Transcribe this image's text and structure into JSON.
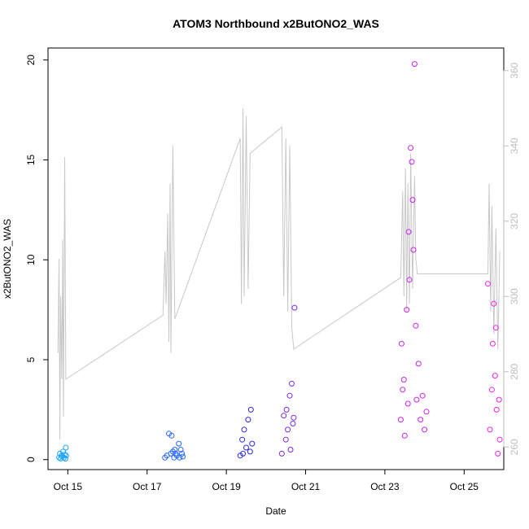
{
  "chart_data": {
    "type": "scatter",
    "title": "ATOM3 Northbound x2ButONO2_WAS",
    "xlabel": "Date",
    "ylabel": "x2ButONO2_WAS",
    "y2label": "",
    "xlim": [
      14.5,
      26.0
    ],
    "ylim": [
      -0.5,
      20.6
    ],
    "y2lim": [
      254,
      366
    ],
    "x_ticks": [
      15,
      17,
      19,
      21,
      23,
      25
    ],
    "x_tick_labels": [
      "Oct 15",
      "Oct 17",
      "Oct 19",
      "Oct 21",
      "Oct 23",
      "Oct 25"
    ],
    "y_ticks": [
      0,
      5,
      10,
      15,
      20
    ],
    "y_tick_labels": [
      "0",
      "5",
      "10",
      "15",
      "20"
    ],
    "y2_ticks": [
      260,
      280,
      300,
      320,
      340,
      360
    ],
    "y2_tick_labels": [
      "260",
      "280",
      "300",
      "320",
      "340",
      "360"
    ],
    "grid": false,
    "colors": {
      "points_by_time": [
        "#1aa3ff",
        "#2666ff",
        "#2a2ae6",
        "#7a2ae6",
        "#cc22ee",
        "#ee22ee"
      ],
      "line": "#c8c8c8"
    },
    "series": [
      {
        "marker": "open-circle",
        "points": [
          [
            14.78,
            0.1
          ],
          [
            14.8,
            0.3
          ],
          [
            14.82,
            0.05
          ],
          [
            14.84,
            0.2
          ],
          [
            14.86,
            0.15
          ],
          [
            14.88,
            0.4
          ],
          [
            14.9,
            0.1
          ],
          [
            14.92,
            0.25
          ],
          [
            14.94,
            0.05
          ],
          [
            14.95,
            0.6
          ],
          [
            14.96,
            0.2
          ],
          [
            17.45,
            0.1
          ],
          [
            17.5,
            0.2
          ],
          [
            17.55,
            1.3
          ],
          [
            17.6,
            0.3
          ],
          [
            17.62,
            1.2
          ],
          [
            17.65,
            0.4
          ],
          [
            17.68,
            0.1
          ],
          [
            17.7,
            0.5
          ],
          [
            17.72,
            0.3
          ],
          [
            17.75,
            0.2
          ],
          [
            17.8,
            0.8
          ],
          [
            17.82,
            0.1
          ],
          [
            17.85,
            0.5
          ],
          [
            17.88,
            0.3
          ],
          [
            17.9,
            0.15
          ],
          [
            19.35,
            0.2
          ],
          [
            19.4,
            1.0
          ],
          [
            19.42,
            0.3
          ],
          [
            19.45,
            1.5
          ],
          [
            19.5,
            0.6
          ],
          [
            19.55,
            2.0
          ],
          [
            19.6,
            0.4
          ],
          [
            19.62,
            2.5
          ],
          [
            19.65,
            0.8
          ],
          [
            20.4,
            0.3
          ],
          [
            20.45,
            2.2
          ],
          [
            20.5,
            1.0
          ],
          [
            20.52,
            2.5
          ],
          [
            20.55,
            1.5
          ],
          [
            20.6,
            3.2
          ],
          [
            20.62,
            0.5
          ],
          [
            20.65,
            3.8
          ],
          [
            20.68,
            1.8
          ],
          [
            20.7,
            2.1
          ],
          [
            20.72,
            7.6
          ],
          [
            23.4,
            2.0
          ],
          [
            23.42,
            5.8
          ],
          [
            23.45,
            3.5
          ],
          [
            23.48,
            4.0
          ],
          [
            23.5,
            1.2
          ],
          [
            23.55,
            7.5
          ],
          [
            23.58,
            2.8
          ],
          [
            23.6,
            11.4
          ],
          [
            23.62,
            9.0
          ],
          [
            23.65,
            15.6
          ],
          [
            23.68,
            14.9
          ],
          [
            23.7,
            13.0
          ],
          [
            23.72,
            10.5
          ],
          [
            23.75,
            19.8
          ],
          [
            23.78,
            6.7
          ],
          [
            23.8,
            3.0
          ],
          [
            23.85,
            4.8
          ],
          [
            23.9,
            2.0
          ],
          [
            23.95,
            3.2
          ],
          [
            24.0,
            1.5
          ],
          [
            24.05,
            2.4
          ],
          [
            25.6,
            8.8
          ],
          [
            25.65,
            1.5
          ],
          [
            25.7,
            3.5
          ],
          [
            25.72,
            5.8
          ],
          [
            25.75,
            7.8
          ],
          [
            25.78,
            4.2
          ],
          [
            25.8,
            6.6
          ],
          [
            25.82,
            2.5
          ],
          [
            25.85,
            0.3
          ],
          [
            25.88,
            3.0
          ],
          [
            25.9,
            1.0
          ]
        ]
      },
      {
        "marker": "line",
        "axis": "right",
        "points": [
          [
            14.75,
            285
          ],
          [
            14.78,
            310
          ],
          [
            14.8,
            262
          ],
          [
            14.82,
            300
          ],
          [
            14.85,
            278
          ],
          [
            14.87,
            315
          ],
          [
            14.89,
            268
          ],
          [
            14.92,
            337
          ],
          [
            14.95,
            278
          ],
          [
            17.4,
            295
          ],
          [
            17.45,
            312
          ],
          [
            17.48,
            298
          ],
          [
            17.52,
            322
          ],
          [
            17.55,
            288
          ],
          [
            17.58,
            330
          ],
          [
            17.6,
            285
          ],
          [
            17.65,
            340
          ],
          [
            17.7,
            294
          ],
          [
            19.35,
            342
          ],
          [
            19.38,
            298
          ],
          [
            19.42,
            350
          ],
          [
            19.45,
            300
          ],
          [
            19.5,
            348
          ],
          [
            19.55,
            302
          ],
          [
            19.6,
            338
          ],
          [
            20.4,
            345
          ],
          [
            20.45,
            300
          ],
          [
            20.5,
            342
          ],
          [
            20.55,
            296
          ],
          [
            20.6,
            340
          ],
          [
            20.65,
            292
          ],
          [
            20.7,
            286
          ],
          [
            23.4,
            305
          ],
          [
            23.45,
            328
          ],
          [
            23.48,
            300
          ],
          [
            23.52,
            334
          ],
          [
            23.55,
            296
          ],
          [
            23.58,
            330
          ],
          [
            23.62,
            298
          ],
          [
            23.65,
            338
          ],
          [
            23.7,
            302
          ],
          [
            23.75,
            332
          ],
          [
            23.78,
            310
          ],
          [
            23.82,
            306
          ],
          [
            25.6,
            306
          ],
          [
            25.63,
            330
          ],
          [
            25.67,
            296
          ],
          [
            25.7,
            324
          ],
          [
            25.75,
            290
          ],
          [
            25.8,
            318
          ],
          [
            25.85,
            286
          ],
          [
            25.9,
            312
          ]
        ]
      }
    ]
  }
}
